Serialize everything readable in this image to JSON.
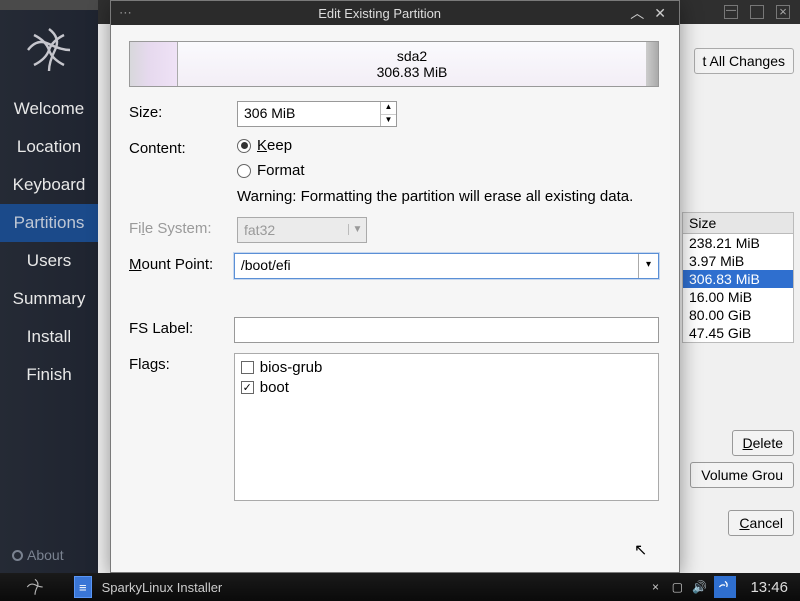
{
  "sidebar": {
    "items": [
      {
        "label": "Welcome"
      },
      {
        "label": "Location"
      },
      {
        "label": "Keyboard"
      },
      {
        "label": "Partitions",
        "active": true
      },
      {
        "label": "Users"
      },
      {
        "label": "Summary"
      },
      {
        "label": "Install"
      },
      {
        "label": "Finish"
      }
    ],
    "about": "About"
  },
  "backgroundWindow": {
    "topButton": "t All Changes",
    "sizeHeader": "Size",
    "sizeRows": [
      {
        "v": "238.21 MiB"
      },
      {
        "v": "3.97 MiB"
      },
      {
        "v": "306.83 MiB",
        "selected": true
      },
      {
        "v": "16.00 MiB"
      },
      {
        "v": "80.00 GiB"
      },
      {
        "v": "47.45 GiB"
      }
    ],
    "deleteBtn": "Delete",
    "volumeBtn": "Volume Grou",
    "cancelBtn": "Cancel"
  },
  "modal": {
    "title": "Edit Existing Partition",
    "partition": {
      "name": "sda2",
      "size": "306.83 MiB"
    },
    "labels": {
      "size": "Size:",
      "content": "Content:",
      "filesystem": "File System:",
      "mountpoint": "Mount Point:",
      "fslabel": "FS Label:",
      "flags": "Flags:"
    },
    "sizeValue": "306 MiB",
    "content": {
      "keep": "Keep",
      "format": "Format",
      "selected": "keep",
      "warning": "Warning: Formatting the partition will erase all existing data."
    },
    "filesystem": "fat32",
    "mountpoint": "/boot/efi",
    "fslabel": "",
    "flags": [
      {
        "name": "bios-grub",
        "checked": false
      },
      {
        "name": "boot",
        "checked": true
      }
    ]
  },
  "taskbar": {
    "appName": "SparkyLinux Installer",
    "clock": "13:46"
  },
  "colors": {
    "accent": "#2f6fcf",
    "sidebarActive": "#1b4a8a"
  }
}
